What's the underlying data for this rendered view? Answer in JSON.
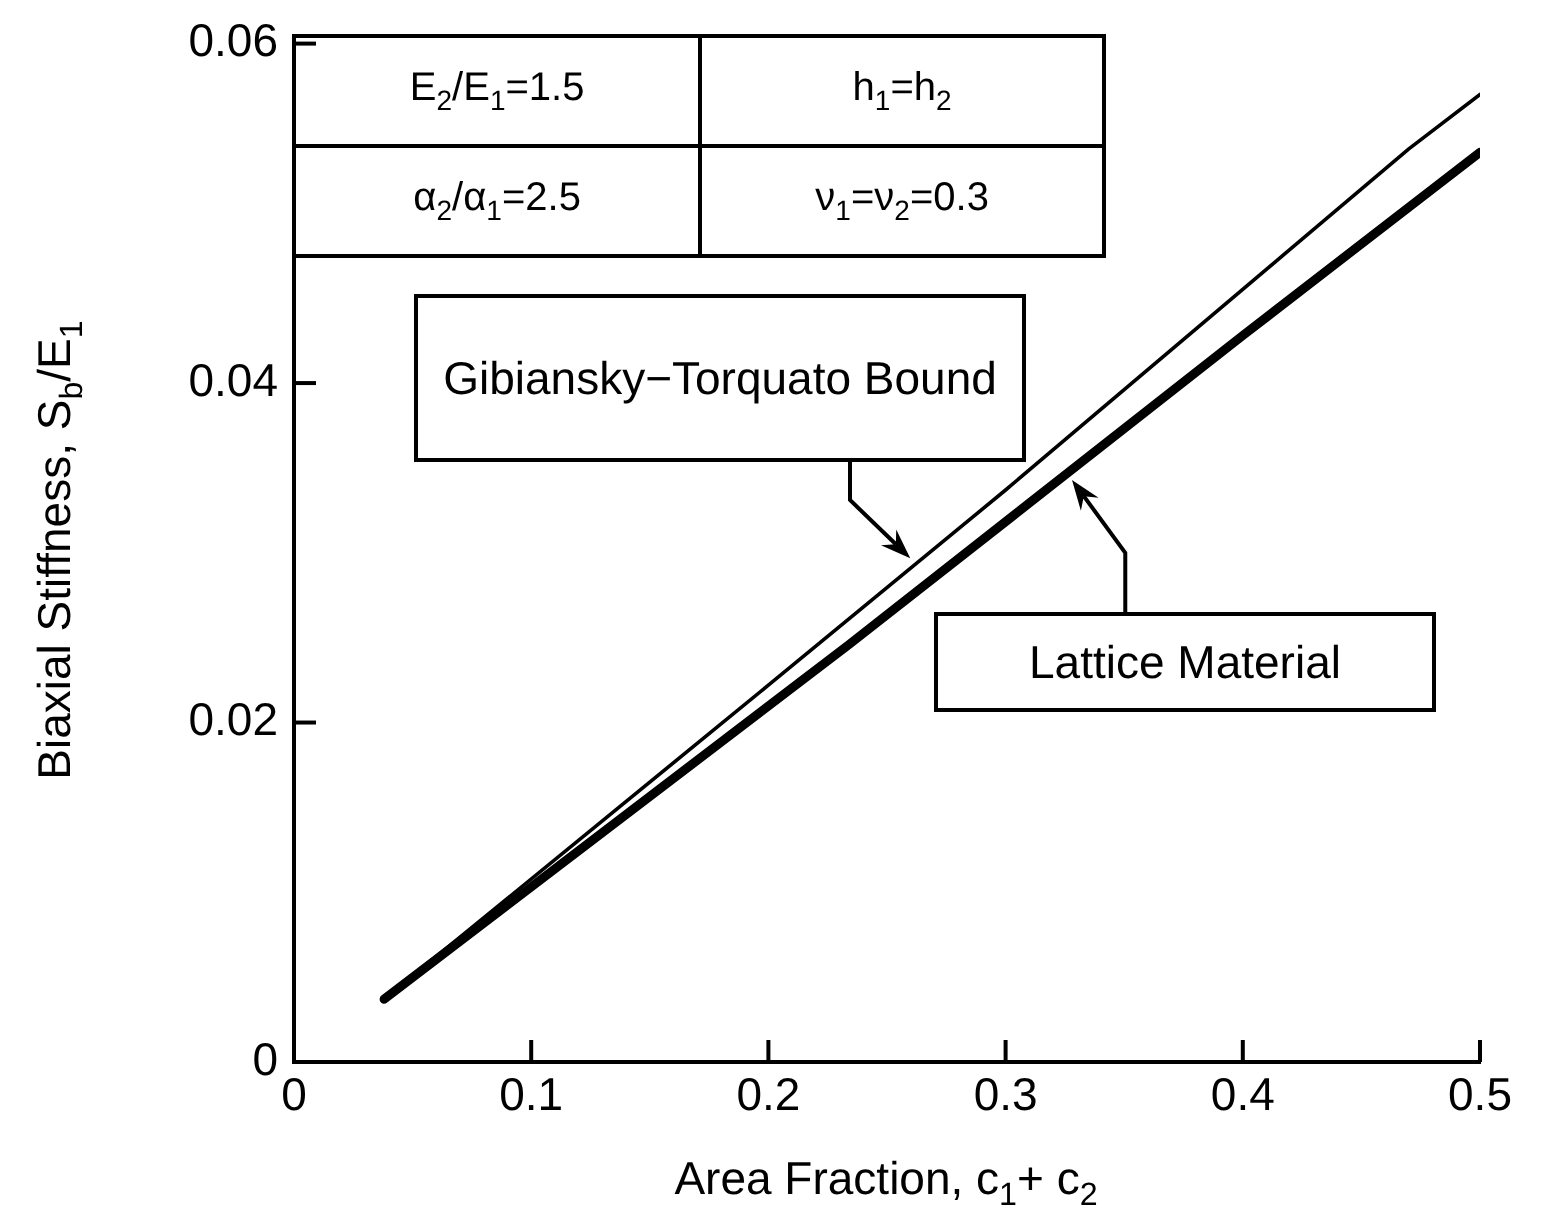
{
  "chart_data": {
    "type": "line",
    "xlabel": "Area Fraction, c$_{1}$+ c$_{2}$",
    "ylabel": "Biaxial Stiffness, S$_{b}$/E$_{1}$",
    "xlim": [
      0,
      0.5
    ],
    "xticks": [
      0,
      0.1,
      0.2,
      0.3,
      0.4,
      0.5
    ],
    "ylim": [
      0,
      0.06
    ],
    "yticks": [
      0,
      0.02,
      0.04,
      0.06
    ],
    "grid": false,
    "legend": false,
    "marker": "none",
    "line_style": "solid",
    "series": [
      {
        "color": "#000000",
        "x": [
          0.038,
          0.2,
          0.3,
          0.47,
          0.5
        ],
        "values": [
          0.0037,
          0.0222,
          0.0337,
          0.0538,
          0.057
        ]
      },
      {
        "color": "#000000",
        "x": [
          0.038,
          0.234,
          0.4,
          0.5
        ],
        "values": [
          0.0037,
          0.0246,
          0.0428,
          0.0536
        ]
      }
    ],
    "annotations": [
      "E$_{2}$/E$_{1}$=1.5",
      "h$_{1}$=h$_{2}$",
      "α$_{2}$/α$_{1}$=2.5",
      "ν$_{1}$=ν$_{2}$=0.3",
      "Gibiansky−Torquato Bound",
      "Lattice Material"
    ]
  }
}
